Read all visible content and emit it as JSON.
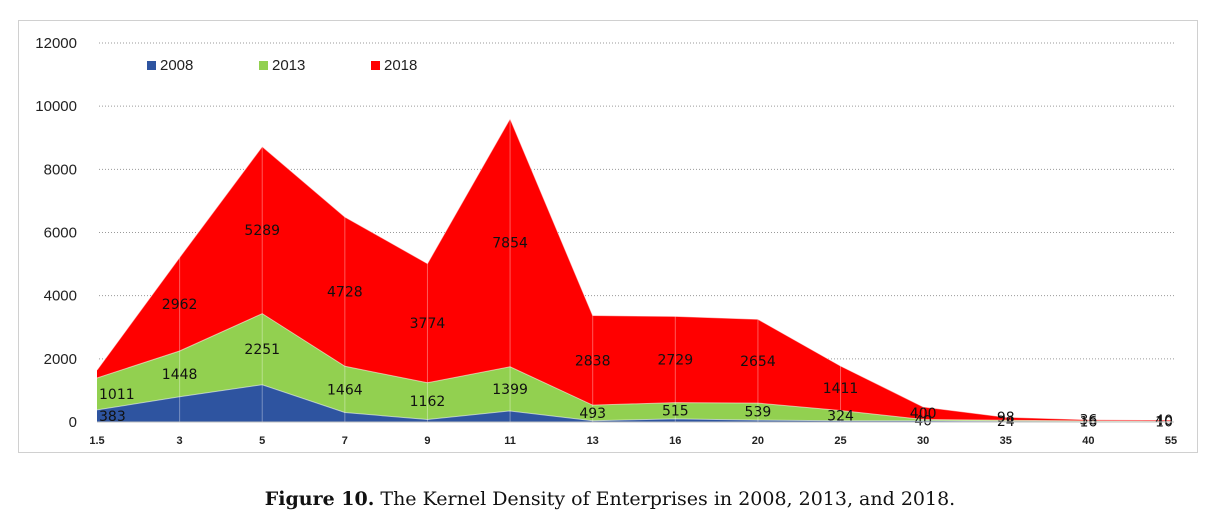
{
  "chart_data": {
    "type": "area",
    "stacked": true,
    "title": "",
    "xlabel": "",
    "ylabel": "",
    "categories": [
      "1.5",
      "3",
      "5",
      "7",
      "9",
      "11",
      "13",
      "16",
      "20",
      "25",
      "30",
      "35",
      "40",
      "55"
    ],
    "ylim": [
      0,
      12000
    ],
    "yticks": [
      0,
      2000,
      4000,
      6000,
      8000,
      10000,
      12000
    ],
    "grid": "horizontal-dotted",
    "legend": "top-left",
    "series": [
      {
        "name": "2008",
        "color": "#2E54A0",
        "values": [
          383,
          800,
          1180,
          300,
          80,
          350,
          40,
          100,
          60,
          40,
          40,
          24,
          16,
          10
        ]
      },
      {
        "name": "2013",
        "color": "#92D050",
        "values": [
          1011,
          1448,
          2251,
          1464,
          1162,
          1399,
          493,
          515,
          539,
          324,
          40,
          30,
          20,
          11
        ]
      },
      {
        "name": "2018",
        "color": "#FF0000",
        "values": [
          250,
          2962,
          5289,
          4728,
          3774,
          7854,
          2838,
          2729,
          2654,
          1411,
          400,
          98,
          36,
          40
        ]
      }
    ],
    "data_labels": [
      {
        "series": "2008",
        "index": 0,
        "text": "383"
      },
      {
        "series": "2013",
        "index": 0,
        "text": "1011"
      },
      {
        "series": "2013",
        "index": 1,
        "text": "1448"
      },
      {
        "series": "2013",
        "index": 2,
        "text": "2251"
      },
      {
        "series": "2013",
        "index": 3,
        "text": "1464"
      },
      {
        "series": "2013",
        "index": 4,
        "text": "1162"
      },
      {
        "series": "2013",
        "index": 5,
        "text": "1399"
      },
      {
        "series": "2013",
        "index": 6,
        "text": "493"
      },
      {
        "series": "2013",
        "index": 7,
        "text": "515"
      },
      {
        "series": "2013",
        "index": 8,
        "text": "539"
      },
      {
        "series": "2013",
        "index": 9,
        "text": "324"
      },
      {
        "series": "2008",
        "index": 10,
        "text": "40"
      },
      {
        "series": "2008",
        "index": 11,
        "text": "24"
      },
      {
        "series": "2008",
        "index": 12,
        "text": "16"
      },
      {
        "series": "2008",
        "index": 13,
        "text": "10"
      },
      {
        "series": "2018",
        "index": 1,
        "text": "2962"
      },
      {
        "series": "2018",
        "index": 2,
        "text": "5289"
      },
      {
        "series": "2018",
        "index": 3,
        "text": "4728"
      },
      {
        "series": "2018",
        "index": 4,
        "text": "3774"
      },
      {
        "series": "2018",
        "index": 5,
        "text": "7854"
      },
      {
        "series": "2018",
        "index": 6,
        "text": "2838"
      },
      {
        "series": "2018",
        "index": 7,
        "text": "2729"
      },
      {
        "series": "2018",
        "index": 8,
        "text": "2654"
      },
      {
        "series": "2018",
        "index": 9,
        "text": "1411"
      },
      {
        "series": "2018",
        "index": 10,
        "text": "400"
      },
      {
        "series": "2018",
        "index": 11,
        "text": "98"
      },
      {
        "series": "2018",
        "index": 12,
        "text": "36"
      },
      {
        "series": "2018",
        "index": 13,
        "text": "40"
      }
    ]
  },
  "caption": {
    "label": "Figure 10.",
    "text": " The Kernel Density of Enterprises in 2008, 2013, and 2018."
  }
}
